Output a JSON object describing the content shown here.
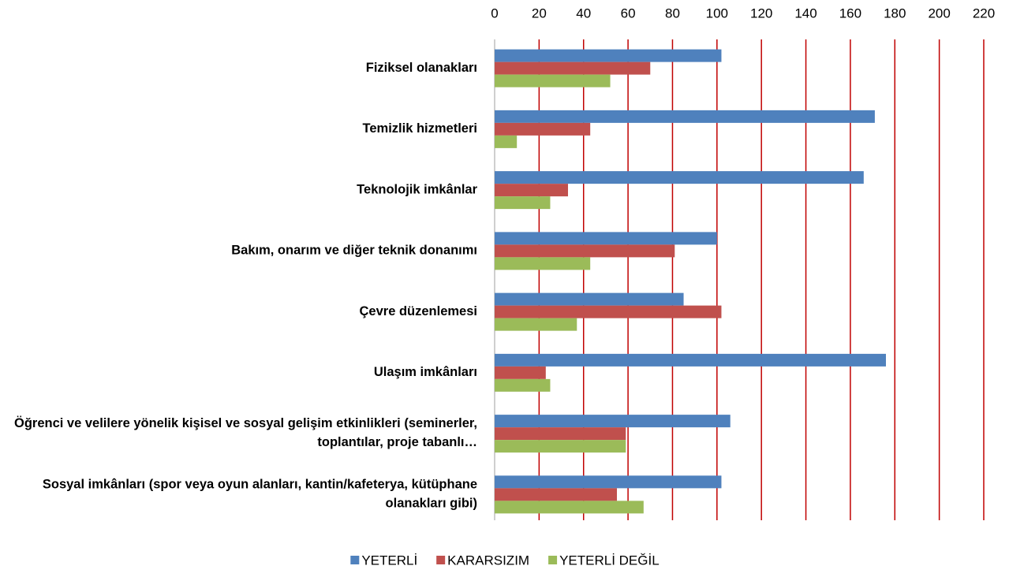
{
  "chart_data": {
    "type": "bar",
    "orientation": "horizontal",
    "categories": [
      "Fiziksel olanakları",
      "Temizlik hizmetleri",
      "Teknolojik imkânlar",
      "Bakım, onarım ve diğer teknik donanımı",
      "Çevre düzenlemesi",
      "Ulaşım imkânları",
      "Öğrenci ve velilere yönelik kişisel ve sosyal gelişim etkinlikleri (seminerler, toplantılar, proje tabanlı…",
      "Sosyal imkânları (spor veya oyun alanları, kantin/kafeterya, kütüphane olanakları gibi)"
    ],
    "series": [
      {
        "name": "YETERLİ",
        "color": "#4f81bd",
        "values": [
          102,
          171,
          166,
          100,
          85,
          176,
          106,
          102
        ]
      },
      {
        "name": "KARARSIZIM",
        "color": "#c0504d",
        "values": [
          70,
          43,
          33,
          81,
          102,
          23,
          59,
          55
        ]
      },
      {
        "name": "YETERLİ DEĞİL",
        "color": "#9bbb59",
        "values": [
          52,
          10,
          25,
          43,
          37,
          25,
          59,
          67
        ]
      }
    ],
    "xlim": [
      0,
      220
    ],
    "xticks": [
      0,
      20,
      40,
      60,
      80,
      100,
      120,
      140,
      160,
      180,
      200,
      220
    ],
    "grid": true,
    "grid_color": "#c00000",
    "legend": "bottom"
  }
}
